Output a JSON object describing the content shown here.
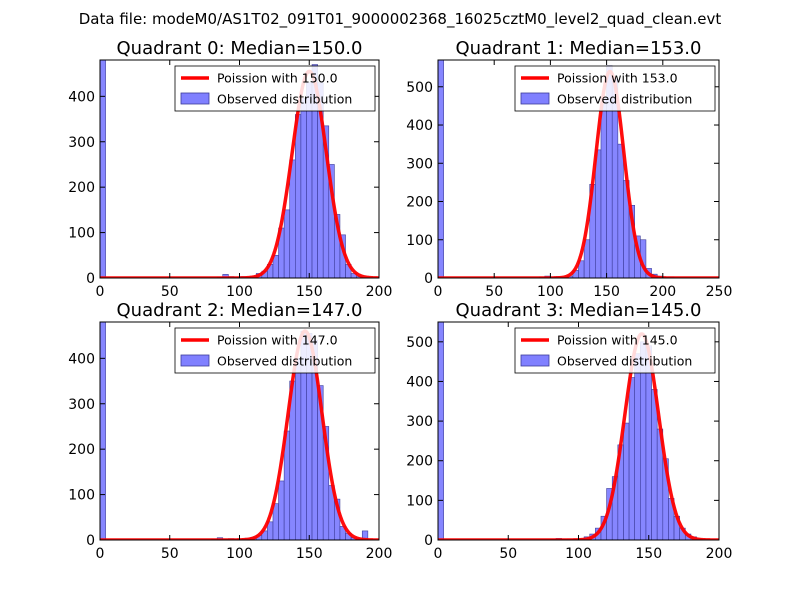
{
  "figure": {
    "suptitle": "Data file: modeM0/AS1T02_091T01_9000002368_16025cztM0_level2_quad_clean.evt"
  },
  "colors": {
    "hist_fill": "#8080ff",
    "hist_edge": "#3c3c99",
    "poisson": "#ff0000",
    "axes": "#000000"
  },
  "chart_data": [
    {
      "type": "bar",
      "title": "Quadrant 0: Median=150.0",
      "median": 150.0,
      "xlim": [
        0,
        200
      ],
      "ylim": [
        0,
        480
      ],
      "xticks": [
        0,
        50,
        100,
        150,
        200
      ],
      "yticks": [
        0,
        100,
        200,
        300,
        400
      ],
      "xtick_labels": [
        "0",
        "50",
        "100",
        "150",
        "200"
      ],
      "ytick_labels": [
        "0",
        "100",
        "200",
        "300",
        "400"
      ],
      "bin_width": 4,
      "bins_x": [
        0,
        84,
        88,
        92,
        96,
        100,
        104,
        108,
        112,
        116,
        120,
        124,
        128,
        132,
        136,
        140,
        144,
        148,
        152,
        156,
        160,
        164,
        168,
        172,
        176,
        180,
        184
      ],
      "bins_y": [
        480,
        2,
        8,
        3,
        2,
        3,
        2,
        4,
        10,
        15,
        30,
        50,
        110,
        150,
        260,
        360,
        395,
        430,
        470,
        430,
        335,
        250,
        140,
        95,
        30,
        10,
        3
      ],
      "legend": [
        "Poission with 150.0",
        "Observed distribution"
      ],
      "legend_loc": "upper-right",
      "poisson_curve": {
        "label": "Poission with 150.0",
        "lambda": 150.0,
        "peak": 455,
        "x_range": [
          0,
          200
        ]
      }
    },
    {
      "type": "bar",
      "title": "Quadrant 1: Median=153.0",
      "median": 153.0,
      "xlim": [
        0,
        250
      ],
      "ylim": [
        0,
        570
      ],
      "xticks": [
        0,
        50,
        100,
        150,
        200,
        250
      ],
      "yticks": [
        0,
        100,
        200,
        300,
        400,
        500
      ],
      "xtick_labels": [
        "0",
        "50",
        "100",
        "150",
        "200",
        "250"
      ],
      "ytick_labels": [
        "0",
        "100",
        "200",
        "300",
        "400",
        "500"
      ],
      "bin_width": 5,
      "bins_x": [
        0,
        90,
        95,
        100,
        105,
        110,
        115,
        120,
        125,
        130,
        135,
        140,
        145,
        150,
        155,
        160,
        165,
        170,
        175,
        180,
        185,
        190,
        195,
        200,
        205
      ],
      "bins_y": [
        570,
        3,
        5,
        3,
        4,
        3,
        5,
        20,
        45,
        100,
        245,
        335,
        470,
        555,
        520,
        350,
        255,
        190,
        110,
        100,
        25,
        10,
        5,
        2,
        3
      ],
      "legend": [
        "Poission with 153.0",
        "Observed distribution"
      ],
      "legend_loc": "upper-right",
      "poisson_curve": {
        "label": "Poission with 153.0",
        "lambda": 153.0,
        "peak": 540,
        "x_range": [
          0,
          250
        ]
      }
    },
    {
      "type": "bar",
      "title": "Quadrant 2: Median=147.0",
      "median": 147.0,
      "xlim": [
        0,
        200
      ],
      "ylim": [
        0,
        480
      ],
      "xticks": [
        0,
        50,
        100,
        150,
        200
      ],
      "yticks": [
        0,
        100,
        200,
        300,
        400
      ],
      "xtick_labels": [
        "0",
        "50",
        "100",
        "150",
        "200"
      ],
      "ytick_labels": [
        "0",
        "100",
        "200",
        "300",
        "400"
      ],
      "bin_width": 4,
      "bins_x": [
        0,
        80,
        84,
        88,
        92,
        96,
        100,
        104,
        108,
        112,
        116,
        120,
        124,
        128,
        132,
        136,
        140,
        144,
        148,
        152,
        156,
        160,
        164,
        168,
        172,
        176,
        180,
        184,
        188
      ],
      "bins_y": [
        480,
        2,
        5,
        2,
        3,
        2,
        2,
        4,
        6,
        10,
        20,
        40,
        80,
        130,
        240,
        350,
        400,
        460,
        455,
        440,
        340,
        250,
        120,
        90,
        30,
        15,
        5,
        3,
        20
      ],
      "legend": [
        "Poission with 147.0",
        "Observed distribution"
      ],
      "legend_loc": "upper-right",
      "poisson_curve": {
        "label": "Poission with 147.0",
        "lambda": 147.0,
        "peak": 460,
        "x_range": [
          0,
          200
        ]
      }
    },
    {
      "type": "bar",
      "title": "Quadrant 3: Median=145.0",
      "median": 145.0,
      "xlim": [
        0,
        200
      ],
      "ylim": [
        0,
        550
      ],
      "xticks": [
        0,
        50,
        100,
        150,
        200
      ],
      "yticks": [
        0,
        100,
        200,
        300,
        400,
        500
      ],
      "xtick_labels": [
        "0",
        "50",
        "100",
        "150",
        "200"
      ],
      "ytick_labels": [
        "0",
        "100",
        "200",
        "300",
        "400",
        "500"
      ],
      "bin_width": 4,
      "bins_x": [
        0,
        80,
        84,
        88,
        92,
        96,
        100,
        104,
        108,
        112,
        116,
        120,
        124,
        128,
        132,
        136,
        140,
        144,
        148,
        152,
        156,
        160,
        164,
        168,
        172,
        176,
        180,
        184
      ],
      "bins_y": [
        550,
        2,
        4,
        2,
        3,
        2,
        4,
        8,
        15,
        30,
        60,
        130,
        160,
        240,
        295,
        410,
        470,
        500,
        490,
        380,
        280,
        205,
        105,
        60,
        30,
        15,
        8,
        3
      ],
      "legend": [
        "Poission with 145.0",
        "Observed distribution"
      ],
      "legend_loc": "upper-right",
      "poisson_curve": {
        "label": "Poission with 145.0",
        "lambda": 145.0,
        "peak": 520,
        "x_range": [
          0,
          200
        ]
      }
    }
  ]
}
